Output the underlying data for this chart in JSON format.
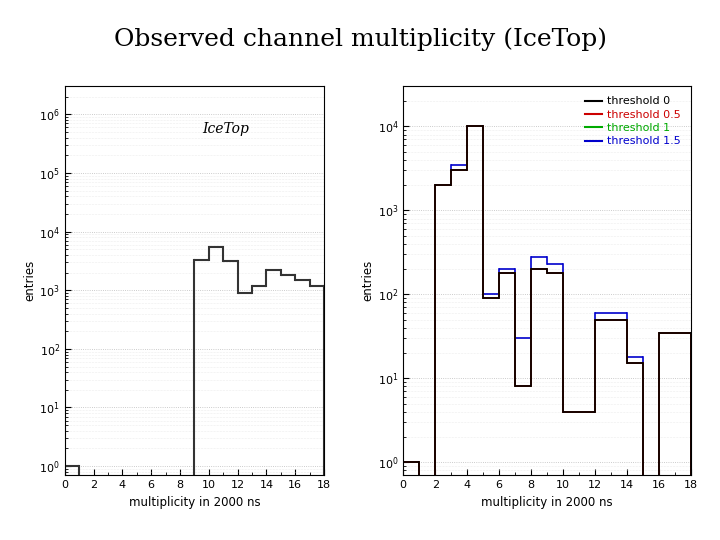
{
  "title": "Observed channel multiplicity (IceTop)",
  "title_fontsize": 18,
  "xlabel": "multiplicity in 2000 ns",
  "ylabel": "entries",
  "xlim": [
    0,
    18
  ],
  "ylim_left": [
    0.7,
    3000000.0
  ],
  "ylim_right": [
    0.7,
    30000.0
  ],
  "left_label": "IceTop",
  "left_edges": [
    0,
    1,
    2,
    3,
    4,
    5,
    6,
    7,
    8,
    9,
    10,
    11,
    12,
    13,
    14,
    15,
    16,
    17,
    18
  ],
  "left_vals": [
    1,
    0,
    0,
    0,
    0,
    0,
    0,
    0,
    0,
    3300,
    5500,
    3200,
    900,
    1200,
    2200,
    1800,
    1500,
    1200
  ],
  "right_thresholds": [
    "threshold 0",
    "threshold 0.5",
    "threshold 1",
    "threshold 1.5"
  ],
  "right_colors": [
    "#000000",
    "#cc0000",
    "#00aa00",
    "#0000cc"
  ],
  "th0_edges": [
    0,
    1,
    2,
    3,
    4,
    5,
    6,
    7,
    8,
    9,
    10,
    11,
    12,
    13,
    14,
    15,
    16,
    17,
    18
  ],
  "th0_vals": [
    1,
    0,
    2000,
    3000,
    10000,
    90,
    180,
    8,
    200,
    180,
    4,
    4,
    50,
    50,
    15,
    0,
    35,
    35
  ],
  "th05_edges": [
    0,
    1,
    2,
    3,
    4,
    5,
    6,
    7,
    8,
    9,
    10,
    11,
    12,
    13,
    14,
    15,
    16,
    17,
    18
  ],
  "th05_vals": [
    1,
    0,
    2000,
    3000,
    10000,
    90,
    180,
    8,
    200,
    180,
    4,
    4,
    50,
    50,
    15,
    0,
    35,
    35
  ],
  "th1_edges": [
    0,
    1,
    2,
    3,
    4,
    5,
    6,
    7,
    8,
    9,
    10,
    11,
    12,
    13,
    14,
    15,
    16,
    17,
    18
  ],
  "th1_vals": [
    1,
    0,
    2000,
    3000,
    10000,
    90,
    180,
    8,
    200,
    180,
    4,
    4,
    50,
    50,
    15,
    0,
    35,
    35
  ],
  "th15_edges": [
    0,
    1,
    2,
    3,
    4,
    5,
    6,
    7,
    8,
    9,
    10,
    11,
    12,
    13,
    14,
    15,
    16,
    17,
    18
  ],
  "th15_vals": [
    1,
    0,
    2000,
    3500,
    10000,
    100,
    200,
    30,
    280,
    230,
    4,
    4,
    60,
    60,
    18,
    0,
    35,
    35
  ],
  "bg_color": "#ffffff"
}
